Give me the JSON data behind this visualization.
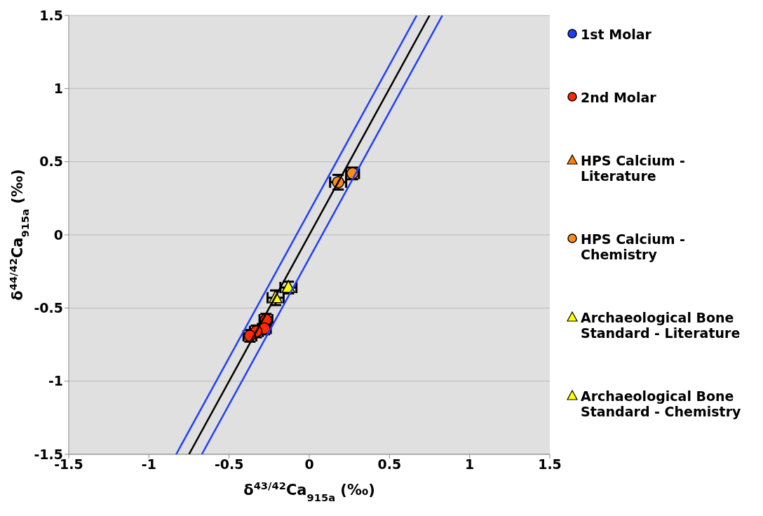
{
  "chart_data": {
    "type": "scatter",
    "xlabel": "δ$^{43/42}$Ca$_{915a}$ (‰)",
    "ylabel": "δ$^{44/42}$Ca$_{915a}$ (‰)",
    "xlim": [
      -1.5,
      1.5
    ],
    "ylim": [
      -1.5,
      1.5
    ],
    "xticks": [
      -1.5,
      -1,
      -0.5,
      0,
      0.5,
      1,
      1.5
    ],
    "yticks": [
      -1.5,
      -1,
      -0.5,
      0,
      0.5,
      1,
      1.5
    ],
    "grid": "y",
    "legend": "right",
    "series": [
      {
        "name": "1st Molar",
        "color": "#1f3fff",
        "marker": "circle"
      },
      {
        "name": "2nd Molar",
        "color": "#ff2a00",
        "marker": "circle",
        "x": [
          -0.27,
          -0.28,
          -0.33,
          -0.37
        ],
        "values": [
          -0.58,
          -0.64,
          -0.66,
          -0.69
        ],
        "errors": [
          0.04,
          0.04,
          0.04,
          0.04
        ],
        "xerrors": [
          0.04,
          0.04,
          0.04,
          0.04
        ]
      },
      {
        "name": "HPS Calcium - Literature",
        "color": "#ff7f00",
        "marker": "triangle"
      },
      {
        "name": "HPS Calcium - Chemistry",
        "color": "#ff8c1a",
        "marker": "circle",
        "x": [
          0.18,
          0.27
        ],
        "values": [
          0.36,
          0.42
        ],
        "errors": [
          0.05,
          0.04
        ],
        "xerrors": [
          0.05,
          0.04
        ]
      },
      {
        "name": "Archaeological Bone Standard - Literature",
        "color": "#ffff00",
        "marker": "triangle",
        "x": [
          -0.13
        ],
        "values": [
          -0.36
        ],
        "errors": [
          0.04
        ],
        "xerrors": [
          0.05
        ]
      },
      {
        "name": "Archaeological Bone Standard - Chemistry",
        "color": "#ffff00",
        "marker": "triangle",
        "x": [
          -0.21
        ],
        "values": [
          -0.43
        ],
        "errors": [
          0.05
        ],
        "xerrors": [
          0.05
        ]
      },
      {
        "type": "line",
        "color": "#000000",
        "marker": "none",
        "x": [
          -0.75,
          0.75
        ],
        "values": [
          -1.5,
          1.5
        ]
      },
      {
        "type": "line",
        "color": "#1f3fff",
        "marker": "none",
        "x": [
          -0.83,
          0.67
        ],
        "values": [
          -1.5,
          1.5
        ]
      },
      {
        "type": "line",
        "color": "#1f3fff",
        "marker": "none",
        "x": [
          -0.67,
          0.83
        ],
        "values": [
          -1.5,
          1.5
        ]
      }
    ]
  }
}
